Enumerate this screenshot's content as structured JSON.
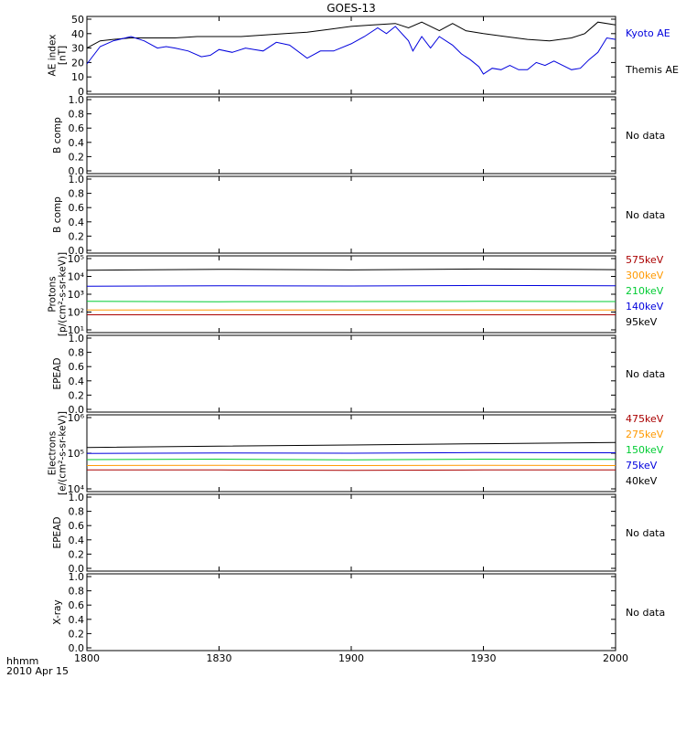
{
  "title": "GOES-13",
  "x_ticks": [
    "1800",
    "1830",
    "1900",
    "1930",
    "2000"
  ],
  "footer": {
    "unit_label": "hhmm",
    "date_label": "2010 Apr 15"
  },
  "colors": {
    "black": "#000000",
    "blue": "#0000dd",
    "red": "#aa0000",
    "orange": "#ff9900",
    "green": "#00cc33"
  },
  "panels": [
    {
      "id": "ae",
      "ylabel": [
        "AE index",
        "[nT]"
      ],
      "scale": "linear",
      "yrange": [
        0,
        50
      ],
      "yticks": [
        "0",
        "10",
        "20",
        "30",
        "40",
        "50"
      ],
      "legend": [
        {
          "text": "Kyoto AE",
          "color": "#0000dd"
        },
        {
          "text": "Themis AE",
          "color": "#000000"
        }
      ]
    },
    {
      "id": "bcomp1",
      "ylabel": [
        "B comp"
      ],
      "scale": "linear",
      "yrange": [
        0,
        1
      ],
      "yticks": [
        "0.0",
        "0.2",
        "0.4",
        "0.6",
        "0.8",
        "1.0"
      ],
      "nodata": "No data"
    },
    {
      "id": "bcomp2",
      "ylabel": [
        "B comp"
      ],
      "scale": "linear",
      "yrange": [
        0,
        1
      ],
      "yticks": [
        "0.0",
        "0.2",
        "0.4",
        "0.6",
        "0.8",
        "1.0"
      ],
      "nodata": "No data"
    },
    {
      "id": "protons",
      "ylabel": [
        "Protons",
        "[p/(cm²-s-sr-keV)]"
      ],
      "scale": "log",
      "yrange": [
        1,
        5
      ],
      "yticks": [
        "10¹",
        "10²",
        "10³",
        "10⁴",
        "10⁵"
      ],
      "legend": [
        {
          "text": "575keV",
          "color": "#aa0000"
        },
        {
          "text": "300keV",
          "color": "#ff9900"
        },
        {
          "text": "210keV",
          "color": "#00cc33"
        },
        {
          "text": "140keV",
          "color": "#0000dd"
        },
        {
          "text": "95keV",
          "color": "#000000"
        }
      ]
    },
    {
      "id": "epead1",
      "ylabel": [
        "EPEAD"
      ],
      "scale": "linear",
      "yrange": [
        0,
        1
      ],
      "yticks": [
        "0.0",
        "0.2",
        "0.4",
        "0.6",
        "0.8",
        "1.0"
      ],
      "nodata": "No data"
    },
    {
      "id": "electrons",
      "ylabel": [
        "Electrons",
        "[e/(cm²-s-sr-keV)]"
      ],
      "scale": "log",
      "yrange": [
        4,
        6
      ],
      "yticks": [
        "10⁴",
        "10⁵",
        "10⁶"
      ],
      "legend": [
        {
          "text": "475keV",
          "color": "#aa0000"
        },
        {
          "text": "275keV",
          "color": "#ff9900"
        },
        {
          "text": "150keV",
          "color": "#00cc33"
        },
        {
          "text": "75keV",
          "color": "#0000dd"
        },
        {
          "text": "40keV",
          "color": "#000000"
        }
      ]
    },
    {
      "id": "epead2",
      "ylabel": [
        "EPEAD"
      ],
      "scale": "linear",
      "yrange": [
        0,
        1
      ],
      "yticks": [
        "0.0",
        "0.2",
        "0.4",
        "0.6",
        "0.8",
        "1.0"
      ],
      "nodata": "No data"
    },
    {
      "id": "xray",
      "ylabel": [
        "X-ray"
      ],
      "scale": "linear",
      "yrange": [
        0,
        1
      ],
      "yticks": [
        "0.0",
        "0.2",
        "0.4",
        "0.6",
        "0.8",
        "1.0"
      ],
      "nodata": "No data"
    }
  ],
  "chart_data": {
    "type": "line",
    "title": "GOES-13",
    "x_label": "hhmm",
    "x_range": [
      "1800",
      "2000"
    ],
    "date": "2010 Apr 15",
    "panels": [
      {
        "name": "AE index",
        "ylim": [
          0,
          50
        ],
        "series": [
          {
            "name": "Themis AE",
            "color": "#000000",
            "x": [
              "1800",
              "1803",
              "1806",
              "1810",
              "1815",
              "1820",
              "1825",
              "1830",
              "1835",
              "1840",
              "1845",
              "1850",
              "1855",
              "1900",
              "1905",
              "1910",
              "1913",
              "1916",
              "1920",
              "1923",
              "1926",
              "1930",
              "1935",
              "1940",
              "1945",
              "1950",
              "1953",
              "1956",
              "2000"
            ],
            "y": [
              30,
              35,
              36,
              37,
              37,
              37,
              38,
              38,
              38,
              39,
              40,
              41,
              43,
              45,
              46,
              47,
              44,
              48,
              42,
              47,
              42,
              40,
              38,
              36,
              35,
              37,
              40,
              48,
              46
            ]
          },
          {
            "name": "Kyoto AE",
            "color": "#0000dd",
            "x": [
              "1800",
              "1803",
              "1806",
              "1810",
              "1813",
              "1816",
              "1818",
              "1820",
              "1823",
              "1826",
              "1828",
              "1830",
              "1833",
              "1836",
              "1838",
              "1840",
              "1843",
              "1846",
              "1850",
              "1853",
              "1856",
              "1900",
              "1903",
              "1906",
              "1908",
              "1910",
              "1913",
              "1914",
              "1916",
              "1918",
              "1920",
              "1923",
              "1925",
              "1927",
              "1929",
              "1930",
              "1932",
              "1934",
              "1936",
              "1938",
              "1940",
              "1942",
              "1944",
              "1946",
              "1948",
              "1950",
              "1952",
              "1954",
              "1956",
              "1958",
              "2000"
            ],
            "y": [
              19,
              31,
              35,
              38,
              35,
              30,
              31,
              30,
              28,
              24,
              25,
              29,
              27,
              30,
              29,
              28,
              34,
              32,
              23,
              28,
              28,
              33,
              38,
              44,
              40,
              45,
              35,
              28,
              38,
              30,
              38,
              32,
              26,
              22,
              17,
              12,
              16,
              15,
              18,
              15,
              15,
              20,
              18,
              21,
              18,
              15,
              16,
              22,
              27,
              37,
              36
            ]
          }
        ]
      },
      {
        "name": "B comp",
        "series": []
      },
      {
        "name": "B comp",
        "series": []
      },
      {
        "name": "Protons",
        "scale": "log",
        "ylim_exponent": [
          1,
          5
        ],
        "series": [
          {
            "name": "95keV",
            "color": "#000000",
            "x": [
              "1800",
              "1830",
              "1900",
              "1930",
              "2000"
            ],
            "y": [
              22000,
              25000,
              23000,
              26000,
              24000
            ]
          },
          {
            "name": "140keV",
            "color": "#0000dd",
            "x": [
              "1800",
              "1830",
              "1900",
              "1930",
              "2000"
            ],
            "y": [
              2800,
              3000,
              2900,
              3100,
              3000
            ]
          },
          {
            "name": "210keV",
            "color": "#00cc33",
            "x": [
              "1800",
              "1830",
              "1900",
              "1930",
              "2000"
            ],
            "y": [
              400,
              380,
              390,
              400,
              390
            ]
          },
          {
            "name": "300keV",
            "color": "#ff9900",
            "x": [
              "1800",
              "1830",
              "1900",
              "1930",
              "2000"
            ],
            "y": [
              130,
              130,
              130,
              130,
              130
            ]
          },
          {
            "name": "575keV",
            "color": "#aa0000",
            "x": [
              "1800",
              "1830",
              "1900",
              "1930",
              "2000"
            ],
            "y": [
              70,
              70,
              70,
              70,
              70
            ]
          }
        ]
      },
      {
        "name": "EPEAD",
        "series": []
      },
      {
        "name": "Electrons",
        "scale": "log",
        "ylim_exponent": [
          4,
          6
        ],
        "series": [
          {
            "name": "40keV",
            "color": "#000000",
            "x": [
              "1800",
              "1830",
              "1900",
              "1930",
              "2000"
            ],
            "y": [
              145000,
              158000,
              170000,
              185000,
              200000
            ]
          },
          {
            "name": "75keV",
            "color": "#0000dd",
            "x": [
              "1800",
              "1830",
              "1900",
              "1930",
              "2000"
            ],
            "y": [
              98000,
              102000,
              100000,
              104000,
              103000
            ]
          },
          {
            "name": "150keV",
            "color": "#00cc33",
            "x": [
              "1800",
              "1830",
              "1900",
              "1930",
              "2000"
            ],
            "y": [
              66000,
              68000,
              65000,
              68000,
              67000
            ]
          },
          {
            "name": "275keV",
            "color": "#ff9900",
            "x": [
              "1800",
              "1830",
              "1900",
              "1930",
              "2000"
            ],
            "y": [
              45000,
              46000,
              45000,
              46000,
              45000
            ]
          },
          {
            "name": "475keV",
            "color": "#aa0000",
            "x": [
              "1800",
              "1830",
              "1900",
              "1930",
              "2000"
            ],
            "y": [
              34000,
              34000,
              33000,
              34000,
              34000
            ]
          }
        ]
      },
      {
        "name": "EPEAD",
        "series": []
      },
      {
        "name": "X-ray",
        "series": []
      }
    ]
  }
}
